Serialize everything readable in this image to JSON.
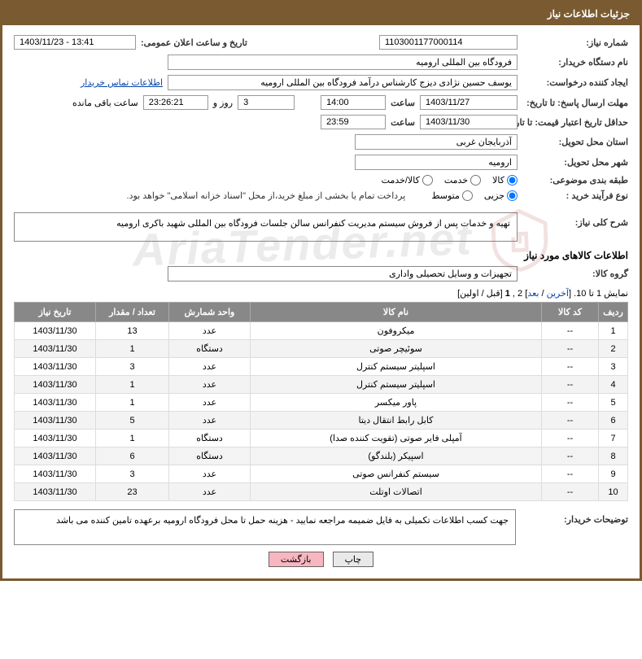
{
  "header": {
    "title": "جزئیات اطلاعات نیاز"
  },
  "fields": {
    "need_no_label": "شماره نیاز:",
    "need_no": "1103001177000114",
    "announce_dt_label": "تاریخ و ساعت اعلان عمومی:",
    "announce_dt": "1403/11/23 - 13:41",
    "buyer_org_label": "نام دستگاه خریدار:",
    "buyer_org": "فرودگاه بین المللی ارومیه",
    "requester_label": "ایجاد کننده درخواست:",
    "requester": "یوسف حسین نژادی دیزج کارشناس درآمد فرودگاه بین المللی ارومیه",
    "contact_link": "اطلاعات تماس خریدار",
    "reply_deadline_label": "مهلت ارسال پاسخ: تا تاریخ:",
    "reply_date": "1403/11/27",
    "time_label": "ساعت",
    "reply_time": "14:00",
    "days": "3",
    "days_suffix": "روز و",
    "countdown": "23:26:21",
    "remaining_suffix": "ساعت باقی مانده",
    "min_valid_label": "حداقل تاریخ اعتبار قیمت: تا تاریخ:",
    "min_valid_date": "1403/11/30",
    "min_valid_time": "23:59",
    "province_label": "استان محل تحویل:",
    "province": "آذربایجان غربی",
    "city_label": "شهر محل تحویل:",
    "city": "ارومیه",
    "category_label": "طبقه بندی موضوعی:",
    "category_opts": {
      "goods": "کالا",
      "service": "خدمت",
      "both": "کالا/خدمت"
    },
    "purchase_type_label": "نوع فرآیند خرید :",
    "purchase_opts": {
      "small": "جزیی",
      "medium": "متوسط"
    },
    "purchase_note": "پرداخت تمام یا بخشی از مبلغ خرید،از محل \"اسناد خزانه اسلامی\" خواهد بود.",
    "general_desc_label": "شرح کلی نیاز:",
    "general_desc": "تهیه و خدمات پس از فروش سیستم مدیریت کنفرانس سالن جلسات فرودگاه بین المللی شهید باکری ارومیه",
    "goods_info_title": "اطلاعات کالاهای مورد نیاز",
    "group_label": "گروه کالا:",
    "group": "تجهیزات و وسایل تحصیلی واداری",
    "buyer_notes_label": "توضیحات خریدار:",
    "buyer_notes": "جهت کسب اطلاعات تکمیلی به فایل ضمیمه مراجعه نمایید - هزینه حمل تا محل فرودگاه ارومیه برعهده تامین کننده می باشد"
  },
  "pager": {
    "text_prefix": "نمایش 1 تا 10. [",
    "last": "آخرین",
    "sep1": " / ",
    "next": "بعد",
    "sep2": "] 2 ,",
    "one": "1",
    "suffix": " [قبل / اولین]"
  },
  "table": {
    "headers": {
      "row": "ردیف",
      "code": "کد کالا",
      "name": "نام کالا",
      "unit": "واحد شمارش",
      "qty": "تعداد / مقدار",
      "date": "تاریخ نیاز"
    },
    "rows": [
      {
        "row": "1",
        "code": "--",
        "name": "میکروفون",
        "unit": "عدد",
        "qty": "13",
        "date": "1403/11/30"
      },
      {
        "row": "2",
        "code": "--",
        "name": "سوئیچر صوتی",
        "unit": "دستگاه",
        "qty": "1",
        "date": "1403/11/30"
      },
      {
        "row": "3",
        "code": "--",
        "name": "اسپلیتر سیستم کنترل",
        "unit": "عدد",
        "qty": "3",
        "date": "1403/11/30"
      },
      {
        "row": "4",
        "code": "--",
        "name": "اسپلیتر سیستم کنترل",
        "unit": "عدد",
        "qty": "1",
        "date": "1403/11/30"
      },
      {
        "row": "5",
        "code": "--",
        "name": "پاور میکسر",
        "unit": "عدد",
        "qty": "1",
        "date": "1403/11/30"
      },
      {
        "row": "6",
        "code": "--",
        "name": "کابل رابط انتقال دیتا",
        "unit": "عدد",
        "qty": "5",
        "date": "1403/11/30"
      },
      {
        "row": "7",
        "code": "--",
        "name": "آمپلی فایر صوتی (تقویت کننده صدا)",
        "unit": "دستگاه",
        "qty": "1",
        "date": "1403/11/30"
      },
      {
        "row": "8",
        "code": "--",
        "name": "اسپیکر (بلندگو)",
        "unit": "دستگاه",
        "qty": "6",
        "date": "1403/11/30"
      },
      {
        "row": "9",
        "code": "--",
        "name": "سیستم کنفرانس صوتی",
        "unit": "عدد",
        "qty": "3",
        "date": "1403/11/30"
      },
      {
        "row": "10",
        "code": "--",
        "name": "اتصالات اوتلت",
        "unit": "عدد",
        "qty": "23",
        "date": "1403/11/30"
      }
    ]
  },
  "buttons": {
    "print": "چاپ",
    "back": "بازگشت"
  },
  "watermark": "AriaTender.net",
  "colors": {
    "header_bg": "#7a5a30",
    "th_bg": "#888888",
    "row_alt": "#f3f3f3",
    "link": "#0645ad",
    "back_btn": "#f7b6c0"
  }
}
